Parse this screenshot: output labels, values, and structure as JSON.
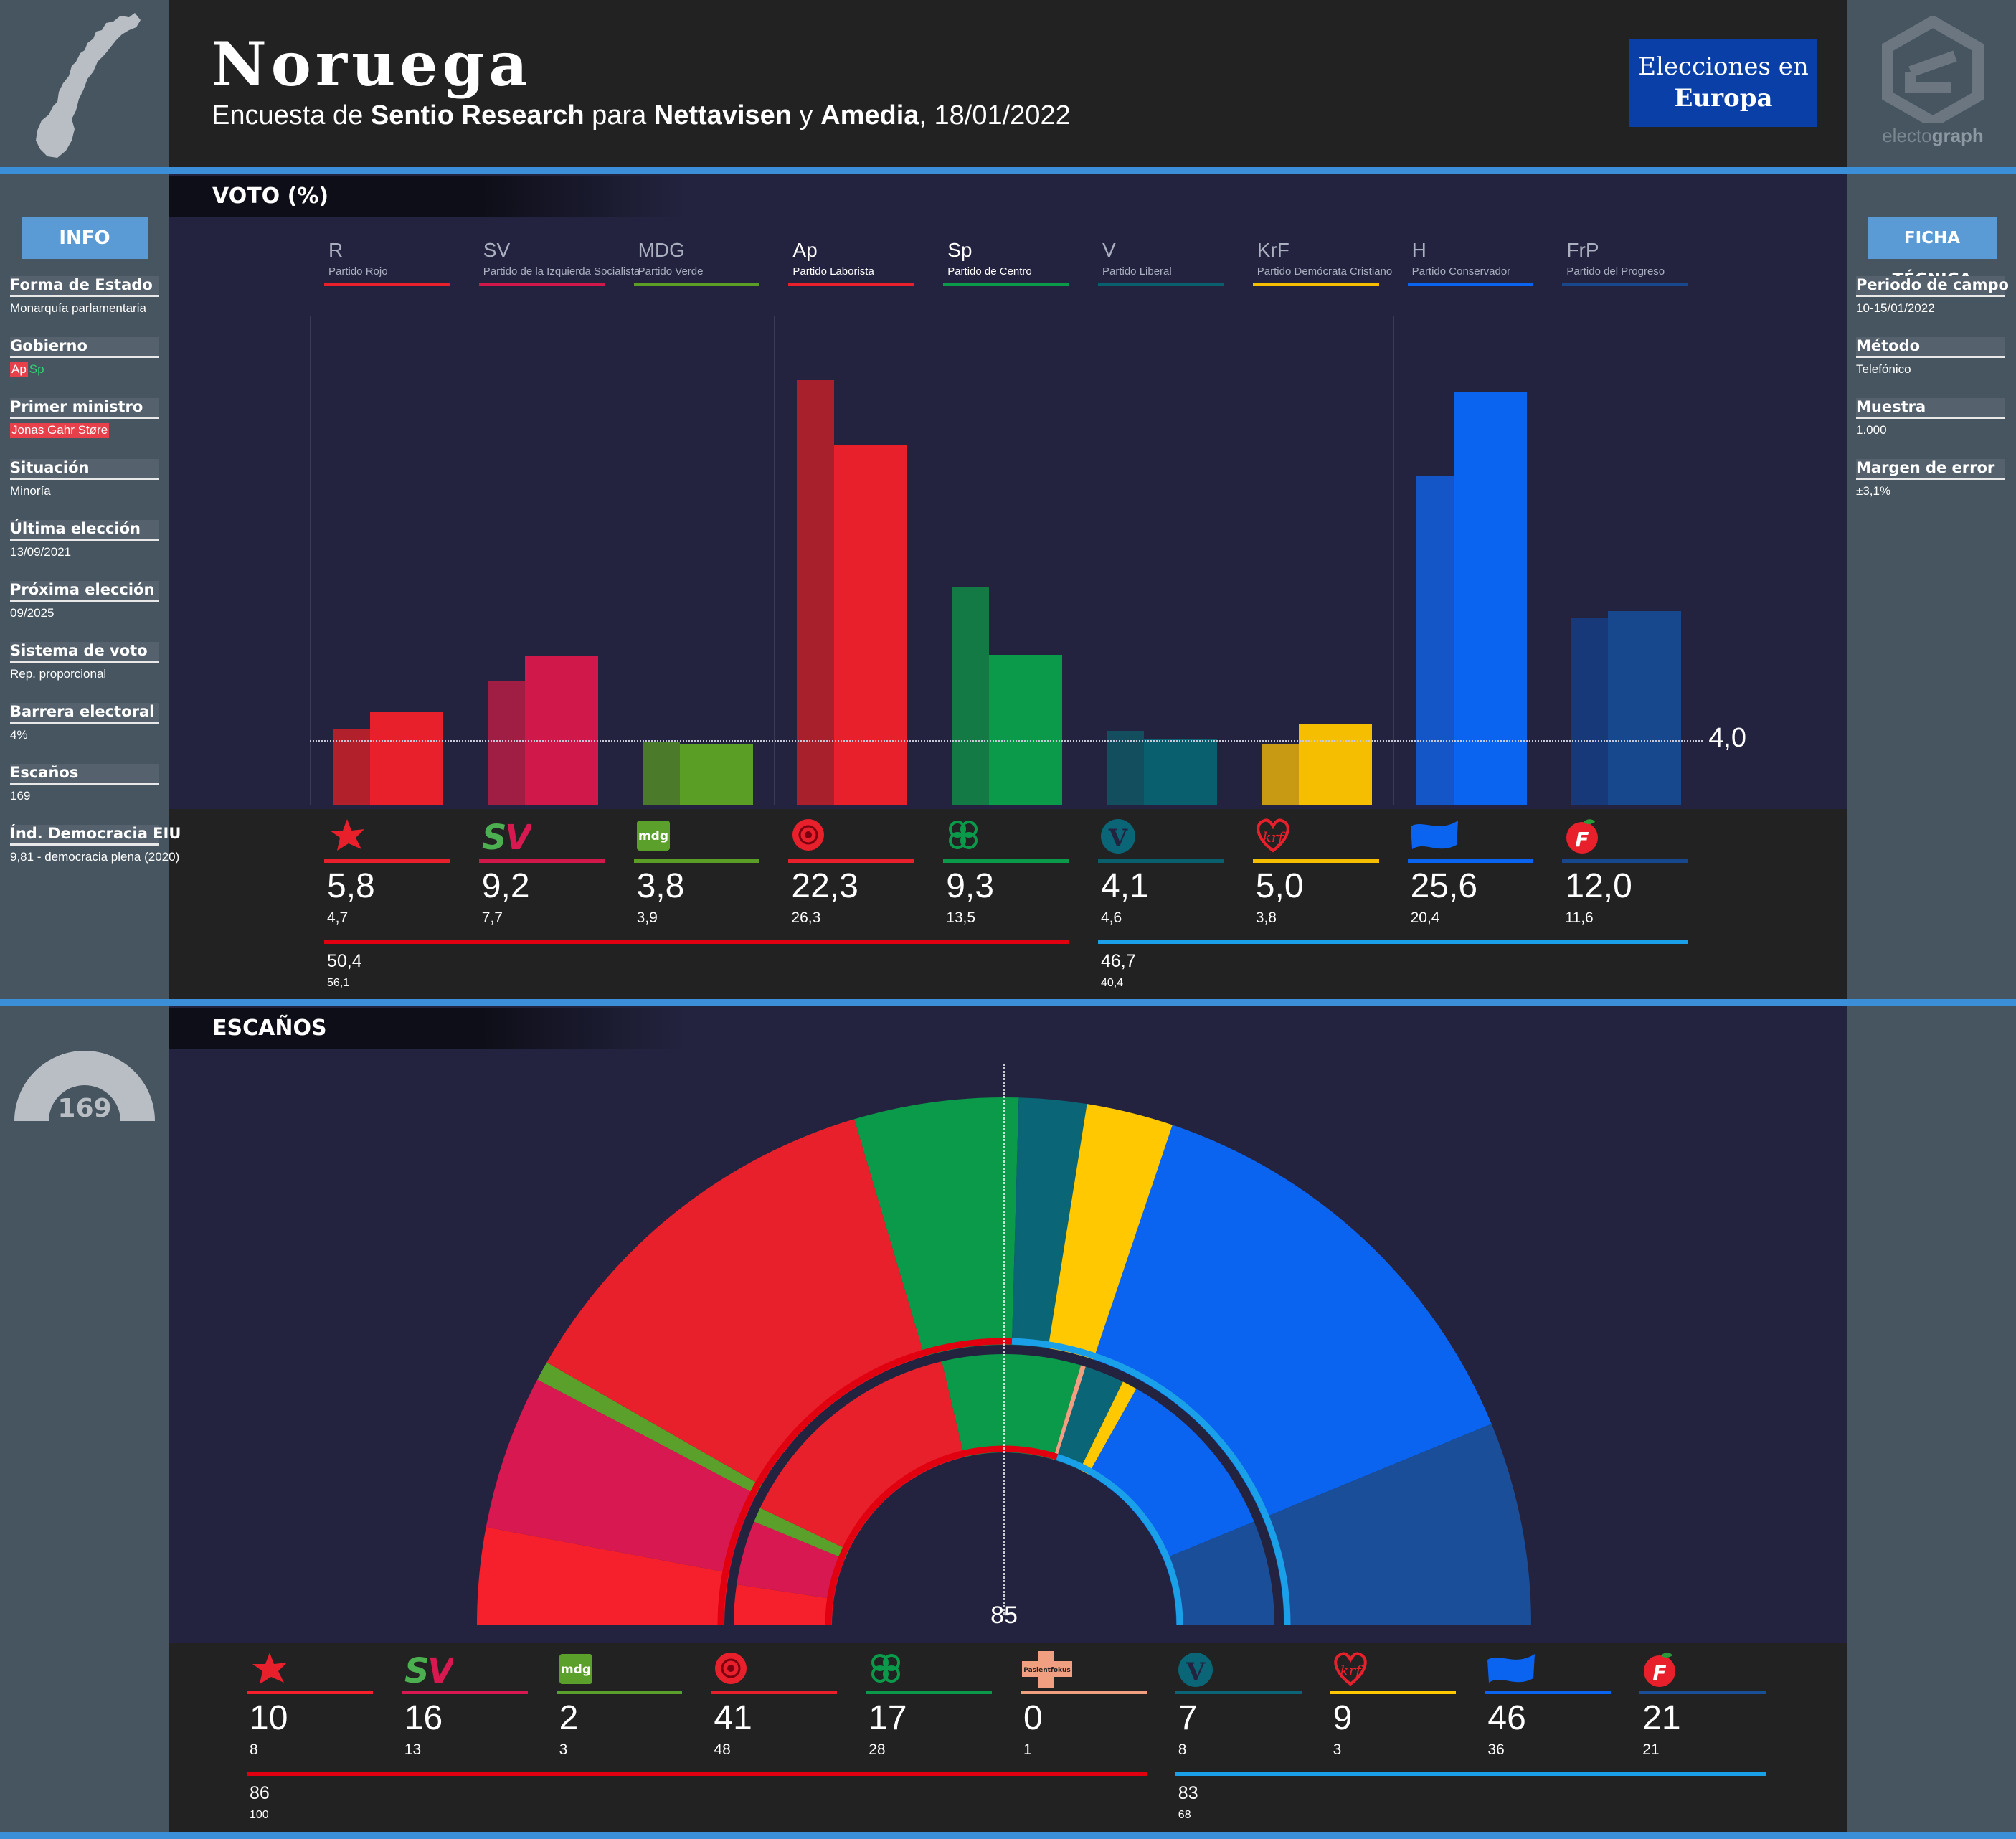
{
  "header": {
    "country": "Noruega",
    "subtitle_parts": [
      {
        "t": "Encuesta de ",
        "b": false
      },
      {
        "t": "Sentio Research",
        "b": true
      },
      {
        "t": " para ",
        "b": false
      },
      {
        "t": "Nettavisen",
        "b": true
      },
      {
        "t": " y ",
        "b": false
      },
      {
        "t": "Amedia",
        "b": true
      },
      {
        "t": ", 18/01/2022",
        "b": false
      }
    ],
    "badge_line1": "Elecciones en",
    "badge_line2": "Europa",
    "brand_part1": "electo",
    "brand_part2": "graph"
  },
  "info": {
    "head": "INFO",
    "items": [
      {
        "label": "Forma de Estado",
        "value": "Monarquía parlamentaria"
      },
      {
        "label": "Gobierno",
        "value": ""
      },
      {
        "label": "Primer ministro",
        "value": "Jonas Gahr Støre"
      },
      {
        "label": "Situación",
        "value": "Minoría"
      },
      {
        "label": "Última elección",
        "value": "13/09/2021"
      },
      {
        "label": "Próxima elección",
        "value": "09/2025"
      },
      {
        "label": "Sistema de voto",
        "value": "Rep. proporcional"
      },
      {
        "label": "Barrera electoral",
        "value": "4%"
      },
      {
        "label": "Escaños",
        "value": "169"
      },
      {
        "label": "Índ. Democracia EIU",
        "value": "9,81 - democracia plena (2020)"
      }
    ],
    "government": [
      {
        "code": "Ap",
        "color": "#e8404a"
      },
      {
        "code": "Sp",
        "color": "#0a9a4a"
      }
    ]
  },
  "ficha": {
    "head": "FICHA TÉCNICA",
    "items": [
      {
        "label": "Periodo de campo",
        "value": "10-15/01/2022"
      },
      {
        "label": "Método",
        "value": "Telefónico"
      },
      {
        "label": "Muestra",
        "value": "1.000"
      },
      {
        "label": "Margen de error",
        "value": "±3,1%"
      }
    ]
  },
  "sections": {
    "vote": "VOTO (%)",
    "seats": "ESCAÑOS"
  },
  "chart_data": [
    {
      "type": "bar",
      "categories": [
        "R",
        "SV",
        "MDG",
        "Ap",
        "Sp",
        "V",
        "KrF",
        "H",
        "FrP"
      ],
      "party_names": [
        "Partido Rojo",
        "Partido de la Izquierda Socialista",
        "Partido Verde",
        "Partido Laborista",
        "Partido de Centro",
        "Partido Liberal",
        "Partido Demócrata Cristiano",
        "Partido Conservador",
        "Partido del Progreso"
      ],
      "highlight": [
        false,
        false,
        false,
        true,
        true,
        false,
        false,
        false,
        false
      ],
      "colors": [
        "#e8202c",
        "#d0184a",
        "#5a9e26",
        "#e8202c",
        "#0a9a4a",
        "#0a5f6e",
        "#f5be00",
        "#0a64f0",
        "#17488e"
      ],
      "prev_colors": [
        "#b2202c",
        "#a01e44",
        "#4a7a2a",
        "#a8202c",
        "#137a45",
        "#124e5e",
        "#c89a14",
        "#1456c8",
        "#17397a"
      ],
      "series": [
        {
          "values": [
            5.8,
            9.2,
            3.8,
            22.3,
            9.3,
            4.1,
            5.0,
            25.6,
            12.0
          ],
          "labels": [
            "5,8",
            "9,2",
            "3,8",
            "22,3",
            "9,3",
            "4,1",
            "5,0",
            "25,6",
            "12,0"
          ]
        },
        {
          "values": [
            4.7,
            7.7,
            3.9,
            26.3,
            13.5,
            4.6,
            3.8,
            20.4,
            11.6
          ],
          "labels": [
            "4,7",
            "7,7",
            "3,9",
            "26,3",
            "13,5",
            "4,6",
            "3,8",
            "20,4",
            "11,6"
          ]
        }
      ],
      "threshold": 4.0,
      "threshold_label": "4,0",
      "blocs": [
        {
          "value": "50,4",
          "prev": "56,1",
          "color": "#e00010",
          "from": 0,
          "to": 4
        },
        {
          "value": "46,7",
          "prev": "40,4",
          "color": "#1aa0e8",
          "from": 5,
          "to": 8
        }
      ]
    },
    {
      "type": "pie",
      "subtype": "parliament-hemicycle",
      "total_seats": 169,
      "total_label": "169",
      "majority": 85,
      "majority_label": "85",
      "categories": [
        "R",
        "SV",
        "MDG",
        "Ap",
        "Sp",
        "PF",
        "V",
        "KrF",
        "H",
        "FrP"
      ],
      "colors": [
        "#f5202c",
        "#d81850",
        "#5aa02a",
        "#e8202c",
        "#0a9a4a",
        "#f0a080",
        "#0a6576",
        "#ffc800",
        "#0a64f0",
        "#1a4e98"
      ],
      "series": [
        {
          "values": [
            10,
            16,
            2,
            41,
            17,
            0,
            7,
            9,
            46,
            21
          ],
          "labels": [
            "10",
            "16",
            "2",
            "41",
            "17",
            "0",
            "7",
            "9",
            "46",
            "21"
          ]
        },
        {
          "values": [
            8,
            13,
            3,
            48,
            28,
            1,
            8,
            3,
            36,
            21
          ],
          "labels": [
            "8",
            "13",
            "3",
            "48",
            "28",
            "1",
            "8",
            "3",
            "36",
            "21"
          ]
        }
      ],
      "blocs": [
        {
          "value": "86",
          "prev": "100",
          "color": "#e00010",
          "from": 0,
          "to": 5
        },
        {
          "value": "83",
          "prev": "68",
          "color": "#1aa0e8",
          "from": 6,
          "to": 9
        }
      ]
    }
  ],
  "logos": {
    "R": {
      "kind": "star",
      "color": "#e8202c"
    },
    "SV": {
      "kind": "text",
      "text": "SV",
      "color": "#4caf50",
      "color2": "#d81850"
    },
    "MDG": {
      "kind": "box",
      "text": "mdg",
      "color": "#5aa02a"
    },
    "Ap": {
      "kind": "rose",
      "color": "#e8202c"
    },
    "Sp": {
      "kind": "clover",
      "color": "#0a9a4a"
    },
    "PF": {
      "kind": "cross",
      "text": "Pasientfokus",
      "color": "#f0a080"
    },
    "V": {
      "kind": "circleV",
      "text": "V",
      "color": "#0a6576"
    },
    "KrF": {
      "kind": "script",
      "text": "krf",
      "color": "#e8202c"
    },
    "H": {
      "kind": "flag",
      "color": "#0a64f0"
    },
    "FrP": {
      "kind": "apple",
      "text": "F",
      "color": "#e8202c"
    }
  }
}
